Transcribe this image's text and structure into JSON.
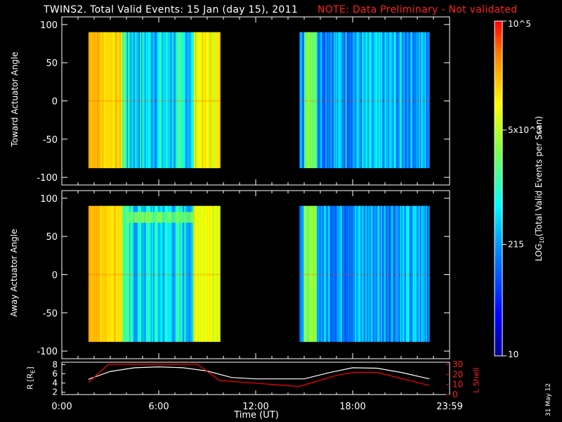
{
  "title": {
    "main": "TWINS2. Total Valid Events: 15 Jan (day  15), 2011",
    "note": "NOTE: Data Preliminary - Not validated",
    "note_color": "#ff0000"
  },
  "stamp": "31 May 12",
  "chart_data": [
    {
      "type": "heatmap",
      "name": "toward",
      "ylabel": "Toward Actuator Angle",
      "xlim": [
        "0:00",
        "23:59"
      ],
      "ylim": [
        -110,
        110
      ],
      "yticks": [
        100,
        50,
        0,
        -50,
        -100
      ],
      "data_intervals_ut": [
        [
          "1:39",
          "9:48"
        ],
        [
          "14:42",
          "22:45"
        ]
      ],
      "angle_range": [
        -88,
        90
      ],
      "dominant_band_by_time": [
        {
          "from": "1:39",
          "to": "3:42",
          "level": "high (~5x10^3)"
        },
        {
          "from": "3:42",
          "to": "8:15",
          "level": "low-mid (~215)"
        },
        {
          "from": "8:15",
          "to": "9:48",
          "level": "high (~5x10^3)"
        },
        {
          "from": "14:42",
          "to": "22:45",
          "level": "low-mid (~215)"
        }
      ]
    },
    {
      "type": "heatmap",
      "name": "away",
      "ylabel": "Away Actuator Angle",
      "xlim": [
        "0:00",
        "23:59"
      ],
      "ylim": [
        -110,
        110
      ],
      "yticks": [
        100,
        50,
        0,
        -50,
        -100
      ],
      "data_intervals_ut": [
        [
          "1:39",
          "9:48"
        ],
        [
          "14:42",
          "22:45"
        ]
      ],
      "angle_range": [
        -88,
        90
      ],
      "annotation": "enhanced band near +75 deg between ~4:00 and ~8:00 UT"
    },
    {
      "type": "line",
      "name": "orbit",
      "xlabel": "Time (UT)",
      "xticks": [
        "0:00",
        "6:00",
        "12:00",
        "18:00",
        "23:59"
      ],
      "left_axis": {
        "label": "R [RE]",
        "ticks": [
          2,
          4,
          6,
          8
        ],
        "range": [
          1.5,
          8.5
        ],
        "color": "#ffffff"
      },
      "right_axis": {
        "label": "L Shell",
        "ticks": [
          0,
          10,
          20,
          30
        ],
        "range": [
          0,
          32
        ],
        "color": "#ff0000"
      },
      "series": [
        {
          "name": "R [RE]",
          "color": "#ffffff",
          "points": [
            [
              1.65,
              4.8
            ],
            [
              3,
              6.5
            ],
            [
              4.5,
              7.3
            ],
            [
              6,
              7.5
            ],
            [
              7.5,
              7.3
            ],
            [
              9,
              6.6
            ],
            [
              10.5,
              5.2
            ],
            [
              12,
              4.9
            ],
            [
              13.5,
              4.9
            ],
            [
              15,
              4.9
            ],
            [
              16.5,
              6.2
            ],
            [
              18,
              7.3
            ],
            [
              19.5,
              7.2
            ],
            [
              21,
              6.3
            ],
            [
              22.75,
              4.9
            ]
          ]
        },
        {
          "name": "L Shell",
          "color": "#ff0000",
          "points": [
            [
              1.65,
              12
            ],
            [
              2.9,
              30
            ],
            [
              8.4,
              30
            ],
            [
              9.75,
              14
            ],
            [
              14.7,
              8
            ],
            [
              17,
              19
            ],
            [
              18.1,
              22
            ],
            [
              19.5,
              22
            ],
            [
              22.75,
              9
            ]
          ]
        }
      ]
    }
  ],
  "colorbar": {
    "label": "LOG10(Total Valid Events per Scan)",
    "ticks": [
      "10^5",
      "5x10^3",
      "215",
      "10"
    ],
    "range": [
      10,
      100000
    ],
    "colors": [
      "#0000c0",
      "#0040ff",
      "#00c0ff",
      "#00ffd0",
      "#60ff60",
      "#ffff00",
      "#ffa000",
      "#ff0000"
    ]
  }
}
